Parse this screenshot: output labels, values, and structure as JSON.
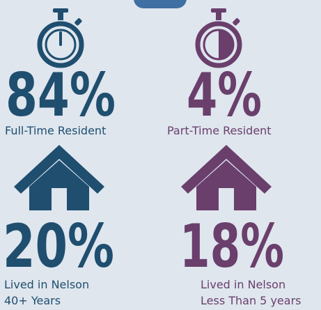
{
  "stats": [
    {
      "value": "84%",
      "label": [
        "Full-Time Resident"
      ]
    },
    {
      "value": "4%",
      "label": [
        "Part-Time Resident"
      ]
    },
    {
      "value": "20%",
      "label": [
        "Lived in Nelson",
        "40+ Years"
      ]
    },
    {
      "value": "18%",
      "label": [
        "Lived in Nelson",
        "Less Than 5 years"
      ]
    }
  ]
}
